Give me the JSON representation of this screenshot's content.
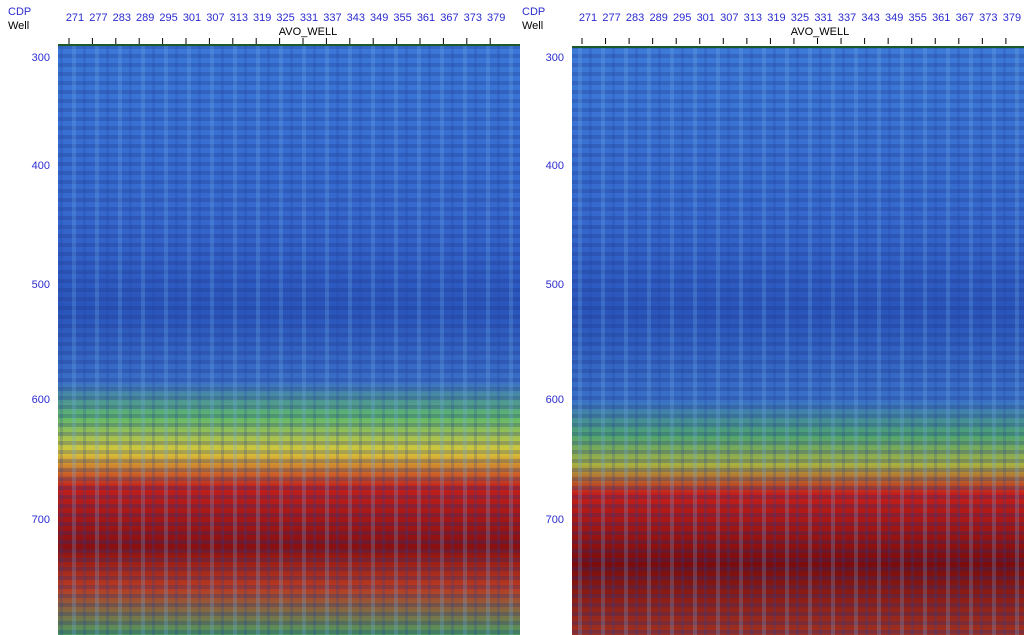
{
  "panels": [
    {
      "cdp_label": "CDP",
      "well_label": "Well",
      "cdps": [
        "271",
        "277",
        "283",
        "289",
        "295",
        "301",
        "307",
        "313",
        "319",
        "325",
        "331",
        "337",
        "343",
        "349",
        "355",
        "361",
        "367",
        "373",
        "379"
      ],
      "well_name": "AVO_WELL",
      "times": [
        "300",
        "400",
        "500",
        "600",
        "700"
      ]
    },
    {
      "cdp_label": "CDP",
      "well_label": "Well",
      "cdps": [
        "271",
        "277",
        "283",
        "289",
        "295",
        "301",
        "307",
        "313",
        "319",
        "325",
        "331",
        "337",
        "343",
        "349",
        "355",
        "361",
        "367",
        "373",
        "379"
      ],
      "well_name": "AVO_WELL",
      "times": [
        "300",
        "400",
        "500",
        "600",
        "700"
      ]
    }
  ]
}
